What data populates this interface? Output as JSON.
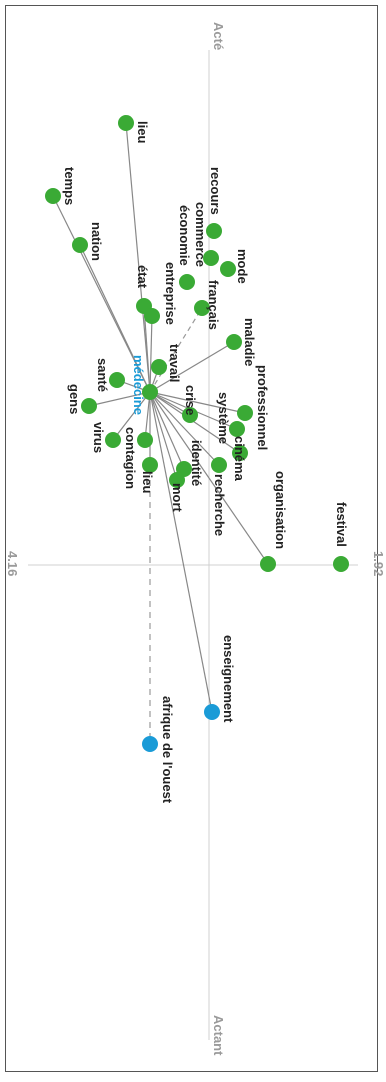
{
  "axes": {
    "top_label": "Acté",
    "bottom_label": "Actant",
    "left_value": "4.16",
    "right_value": "1.92"
  },
  "colors": {
    "node_green": "#3aaa35",
    "node_blue": "#1a9bd7",
    "edge": "#888888",
    "axis": "#d0d0d0"
  },
  "center": {
    "label": "médecine"
  },
  "nodes": {
    "lieu_top": "lieu",
    "temps": "temps",
    "nation": "nation",
    "etat": "état",
    "entreprise": "entreprise",
    "economie": "économie",
    "commerce": "commerce",
    "recours": "recours",
    "mode": "mode",
    "francais": "français",
    "maladie": "maladie",
    "sante": "santé",
    "travail": "travail",
    "gens": "gens",
    "crise": "crise",
    "virus": "virus",
    "systeme": "système",
    "professionnel": "professionnel",
    "contagion": "contagion",
    "lieu_bottom": "lieu",
    "identite": "identité",
    "cinema": "cinéma",
    "mort": "mort",
    "recherche": "recherche",
    "organisation": "organisation",
    "festival": "festival",
    "enseignement": "enseignement",
    "afrique": "afrique de l'ouest"
  }
}
